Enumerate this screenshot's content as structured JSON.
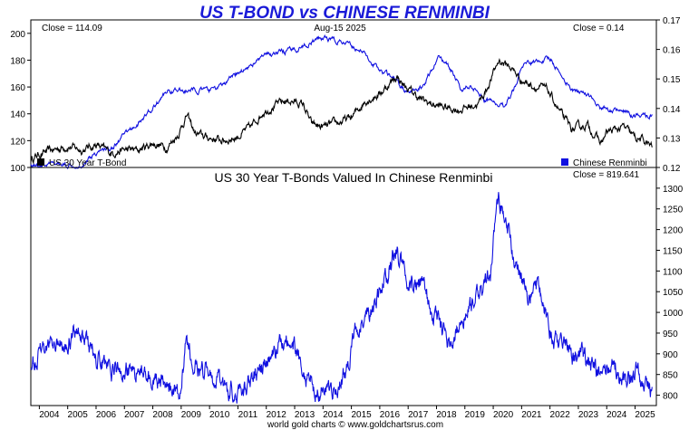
{
  "page_title": "US T-BOND vs CHINESE RENMINBI",
  "footer": "world gold charts © www.goldchartsrus.com",
  "colors": {
    "title": "#1a1ad8",
    "tbond": "#000000",
    "renminbi": "#1010e0",
    "background": "#ffffff",
    "frame": "#000000"
  },
  "chart_data": [
    {
      "type": "line",
      "title": "",
      "date_label": "Aug-15  2025",
      "x_range": [
        2003.7,
        2025.75
      ],
      "y_left": {
        "range": [
          100,
          210
        ],
        "ticks": [
          100,
          120,
          140,
          160,
          180,
          200
        ]
      },
      "y_right": {
        "range": [
          0.12,
          0.17
        ],
        "ticks": [
          0.12,
          0.13,
          0.14,
          0.15,
          0.16,
          0.17
        ]
      },
      "grid": false,
      "legend_placement": "bottom",
      "series": [
        {
          "name": "US 30 Year T-Bond",
          "axis": "left",
          "close_label": "Close = 114.09",
          "x": [
            2003.7,
            2004.0,
            2004.5,
            2005.0,
            2005.5,
            2006.0,
            2006.5,
            2007.0,
            2007.5,
            2008.0,
            2008.5,
            2008.9,
            2009.2,
            2009.5,
            2010.0,
            2010.5,
            2011.0,
            2011.5,
            2011.9,
            2012.5,
            2012.8,
            2013.3,
            2013.6,
            2014.0,
            2014.5,
            2015.0,
            2015.5,
            2016.0,
            2016.6,
            2016.9,
            2017.5,
            2018.0,
            2018.8,
            2019.5,
            2019.8,
            2020.2,
            2020.6,
            2021.0,
            2021.5,
            2021.9,
            2022.5,
            2022.8,
            2023.3,
            2023.8,
            2024.0,
            2024.6,
            2025.0,
            2025.3,
            2025.6
          ],
          "y": [
            106,
            110,
            113,
            116,
            113,
            117,
            111,
            113,
            113,
            118,
            115,
            125,
            139,
            125,
            122,
            120,
            123,
            131,
            142,
            148,
            150,
            147,
            132,
            130,
            133,
            137,
            150,
            155,
            168,
            160,
            150,
            146,
            143,
            148,
            160,
            180,
            175,
            165,
            160,
            158,
            136,
            128,
            132,
            118,
            126,
            130,
            122,
            120,
            115
          ]
        },
        {
          "name": "Chinese Renminbi",
          "axis": "right",
          "close_label": "Close = 0.14",
          "x": [
            2003.7,
            2005.5,
            2006.0,
            2006.6,
            2007.0,
            2007.5,
            2008.0,
            2008.5,
            2009.0,
            2009.5,
            2010.0,
            2010.5,
            2011.0,
            2011.5,
            2012.0,
            2012.5,
            2013.0,
            2013.5,
            2014.0,
            2014.5,
            2015.0,
            2015.3,
            2015.7,
            2016.0,
            2016.5,
            2017.0,
            2017.5,
            2018.1,
            2018.6,
            2018.9,
            2019.2,
            2019.7,
            2020.0,
            2020.4,
            2020.8,
            2021.0,
            2021.5,
            2022.0,
            2022.5,
            2022.8,
            2023.3,
            2023.8,
            2024.0,
            2024.5,
            2025.0,
            2025.6
          ],
          "y": [
            0.121,
            0.121,
            0.125,
            0.127,
            0.131,
            0.135,
            0.14,
            0.146,
            0.146,
            0.146,
            0.146,
            0.148,
            0.152,
            0.155,
            0.158,
            0.159,
            0.16,
            0.162,
            0.164,
            0.163,
            0.161,
            0.16,
            0.156,
            0.153,
            0.15,
            0.145,
            0.147,
            0.158,
            0.152,
            0.146,
            0.148,
            0.143,
            0.142,
            0.141,
            0.148,
            0.155,
            0.156,
            0.157,
            0.15,
            0.146,
            0.145,
            0.14,
            0.14,
            0.139,
            0.137,
            0.138
          ]
        }
      ]
    },
    {
      "type": "line",
      "title": "US 30 Year T-Bonds Valued In Chinese Renminbi",
      "close_label": "Close = 819.641",
      "x_range": [
        2003.7,
        2025.75
      ],
      "x_ticks": [
        2004,
        2005,
        2006,
        2007,
        2008,
        2009,
        2010,
        2011,
        2012,
        2013,
        2014,
        2015,
        2016,
        2017,
        2018,
        2019,
        2020,
        2021,
        2022,
        2023,
        2024,
        2025
      ],
      "y_right": {
        "range": [
          775,
          1350
        ],
        "ticks": [
          800,
          850,
          900,
          950,
          1000,
          1050,
          1100,
          1150,
          1200,
          1250,
          1300
        ]
      },
      "grid": false,
      "series": [
        {
          "name": "",
          "x": [
            2003.7,
            2004.0,
            2004.5,
            2005.0,
            2005.4,
            2005.8,
            2006.3,
            2006.8,
            2007.3,
            2007.8,
            2008.3,
            2008.7,
            2008.9,
            2009.2,
            2009.6,
            2010.0,
            2010.6,
            2011.1,
            2011.7,
            2012.2,
            2012.6,
            2013.0,
            2013.4,
            2013.8,
            2014.3,
            2014.8,
            2015.2,
            2015.7,
            2016.1,
            2016.6,
            2017.0,
            2017.5,
            2018.0,
            2018.5,
            2019.0,
            2019.5,
            2019.9,
            2020.2,
            2020.5,
            2020.9,
            2021.2,
            2021.6,
            2022.0,
            2022.4,
            2022.8,
            2023.2,
            2023.6,
            2023.9,
            2024.2,
            2024.6,
            2025.0,
            2025.3,
            2025.6
          ],
          "y": [
            875,
            900,
            925,
            940,
            960,
            905,
            870,
            860,
            860,
            845,
            825,
            820,
            800,
            930,
            860,
            850,
            820,
            800,
            855,
            900,
            940,
            920,
            850,
            820,
            815,
            860,
            960,
            1010,
            1060,
            1150,
            1070,
            1060,
            980,
            930,
            990,
            1040,
            1090,
            1280,
            1200,
            1090,
            1040,
            1055,
            960,
            920,
            900,
            890,
            860,
            840,
            880,
            840,
            860,
            830,
            820
          ]
        }
      ]
    }
  ]
}
